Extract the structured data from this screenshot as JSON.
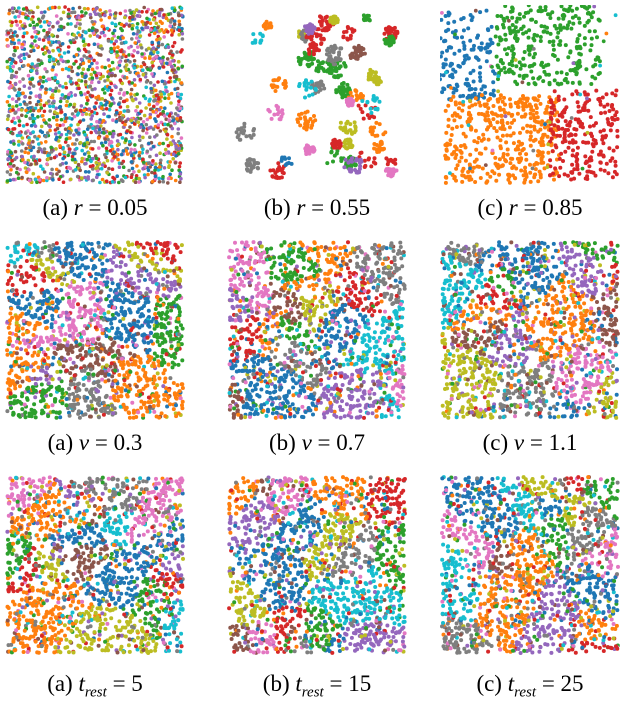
{
  "chart_data": [
    {
      "type": "scatter",
      "caption_letter": "(a)",
      "param": "r",
      "value": "0.05",
      "mode": "uniform"
    },
    {
      "type": "scatter",
      "caption_letter": "(b)",
      "param": "r",
      "value": "0.55",
      "mode": "clusters"
    },
    {
      "type": "scatter",
      "caption_letter": "(c)",
      "param": "r",
      "value": "0.85",
      "mode": "regions"
    },
    {
      "type": "scatter",
      "caption_letter": "(a)",
      "param": "v",
      "value": "0.3",
      "mode": "patchy"
    },
    {
      "type": "scatter",
      "caption_letter": "(b)",
      "param": "v",
      "value": "0.7",
      "mode": "patchy"
    },
    {
      "type": "scatter",
      "caption_letter": "(c)",
      "param": "v",
      "value": "1.1",
      "mode": "patchy"
    },
    {
      "type": "scatter",
      "caption_letter": "(a)",
      "param": "t",
      "param_sub": "rest",
      "value": "5",
      "mode": "patchy"
    },
    {
      "type": "scatter",
      "caption_letter": "(b)",
      "param": "t",
      "param_sub": "rest",
      "value": "15",
      "mode": "patchy"
    },
    {
      "type": "scatter",
      "caption_letter": "(c)",
      "param": "t",
      "param_sub": "rest",
      "value": "25",
      "mode": "patchy"
    }
  ],
  "palette": [
    "#1f77b4",
    "#ff7f0e",
    "#2ca02c",
    "#d62728",
    "#9467bd",
    "#8c564b",
    "#e377c2",
    "#7f7f7f",
    "#bcbd22",
    "#17becf"
  ]
}
